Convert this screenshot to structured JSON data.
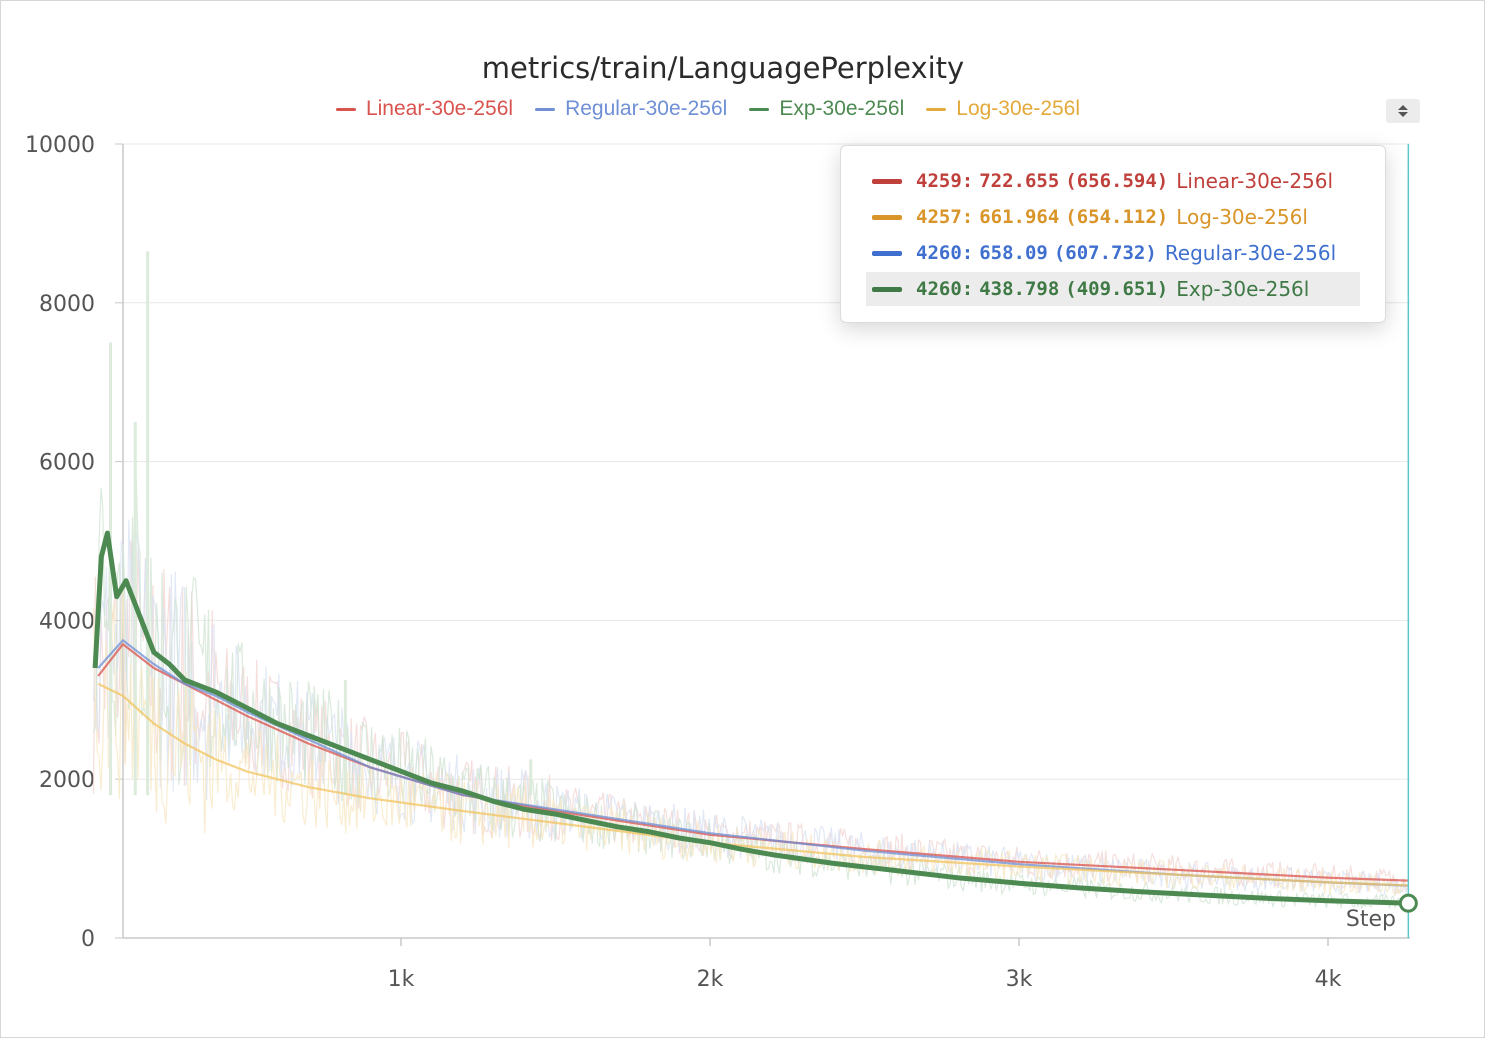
{
  "chart_data": {
    "type": "line",
    "title": "metrics/train/LanguagePerplexity",
    "xlabel": "Step",
    "ylabel": "",
    "xlim": [
      0,
      4260
    ],
    "ylim": [
      0,
      10000
    ],
    "x_ticks": [
      1000,
      2000,
      3000,
      4000
    ],
    "x_tick_labels": [
      "1k",
      "2k",
      "3k",
      "4k"
    ],
    "y_ticks": [
      0,
      2000,
      4000,
      6000,
      8000,
      10000
    ],
    "y_tick_labels": [
      "0",
      "2000",
      "4000",
      "6000",
      "8000",
      "10000"
    ],
    "grid": true,
    "legend": [
      "Linear-30e-256l",
      "Regular-30e-256l",
      "Exp-30e-256l",
      "Log-30e-256l"
    ],
    "series": [
      {
        "name": "Linear-30e-256l",
        "color": "#d9534f",
        "x": [
          20,
          100,
          200,
          300,
          400,
          500,
          700,
          900,
          1200,
          1500,
          2000,
          2500,
          3000,
          3500,
          4000,
          4259
        ],
        "values": [
          3300,
          3700,
          3400,
          3200,
          3000,
          2800,
          2450,
          2150,
          1800,
          1600,
          1300,
          1120,
          960,
          860,
          760,
          722.655
        ]
      },
      {
        "name": "Regular-30e-256l",
        "color": "#6f8fd6",
        "x": [
          20,
          100,
          200,
          300,
          400,
          500,
          700,
          900,
          1200,
          1500,
          2000,
          2500,
          3000,
          3500,
          4000,
          4260
        ],
        "values": [
          3400,
          3750,
          3450,
          3200,
          3050,
          2850,
          2500,
          2150,
          1800,
          1620,
          1320,
          1100,
          930,
          800,
          700,
          658.09
        ]
      },
      {
        "name": "Exp-30e-256l",
        "color": "#4c8a52",
        "x": [
          10,
          30,
          50,
          80,
          110,
          150,
          200,
          250,
          300,
          400,
          500,
          600,
          700,
          800,
          900,
          1000,
          1100,
          1200,
          1300,
          1400,
          1500,
          1600,
          1700,
          1800,
          1900,
          2000,
          2100,
          2200,
          2400,
          2600,
          2800,
          3000,
          3200,
          3400,
          3600,
          3800,
          4000,
          4260
        ],
        "values": [
          3400,
          4800,
          5100,
          4300,
          4500,
          4100,
          3600,
          3450,
          3250,
          3100,
          2900,
          2700,
          2550,
          2400,
          2250,
          2100,
          1950,
          1850,
          1720,
          1620,
          1560,
          1480,
          1400,
          1340,
          1260,
          1200,
          1120,
          1050,
          940,
          850,
          760,
          690,
          630,
          580,
          540,
          500,
          470,
          438.798
        ]
      },
      {
        "name": "Log-30e-256l",
        "color": "#f2c45f",
        "x": [
          20,
          100,
          200,
          300,
          400,
          500,
          700,
          900,
          1200,
          1500,
          2000,
          2500,
          3000,
          3500,
          4000,
          4257
        ],
        "values": [
          3200,
          3050,
          2700,
          2450,
          2250,
          2100,
          1900,
          1760,
          1600,
          1450,
          1200,
          1020,
          900,
          800,
          700,
          661.964
        ]
      }
    ],
    "hover": {
      "step_label": "Step",
      "x": 4260,
      "marker_series": "Exp-30e-256l",
      "marker_value": 438.798,
      "rows": [
        {
          "step": "4259",
          "value": "722.655",
          "smoothed": "(656.594)",
          "name": "Linear-30e-256l",
          "color": "#c0403c"
        },
        {
          "step": "4257",
          "value": "661.964",
          "smoothed": "(654.112)",
          "name": "Log-30e-256l",
          "color": "#d9952a"
        },
        {
          "step": "4260",
          "value": "658.09",
          "smoothed": "(607.732)",
          "name": "Regular-30e-256l",
          "color": "#3f6fcf"
        },
        {
          "step": "4260",
          "value": "438.798",
          "smoothed": "(409.651)",
          "name": "Exp-30e-256l",
          "color": "#3f7a46"
        }
      ]
    }
  },
  "legend_items": [
    {
      "label": "Linear-30e-256l",
      "color": "#d9534f"
    },
    {
      "label": "Regular-30e-256l",
      "color": "#6f8fd6"
    },
    {
      "label": "Exp-30e-256l",
      "color": "#4c8a52"
    },
    {
      "label": "Log-30e-256l",
      "color": "#e3a93b"
    }
  ],
  "legend_scroll_icon": "sort-arrows-icon"
}
